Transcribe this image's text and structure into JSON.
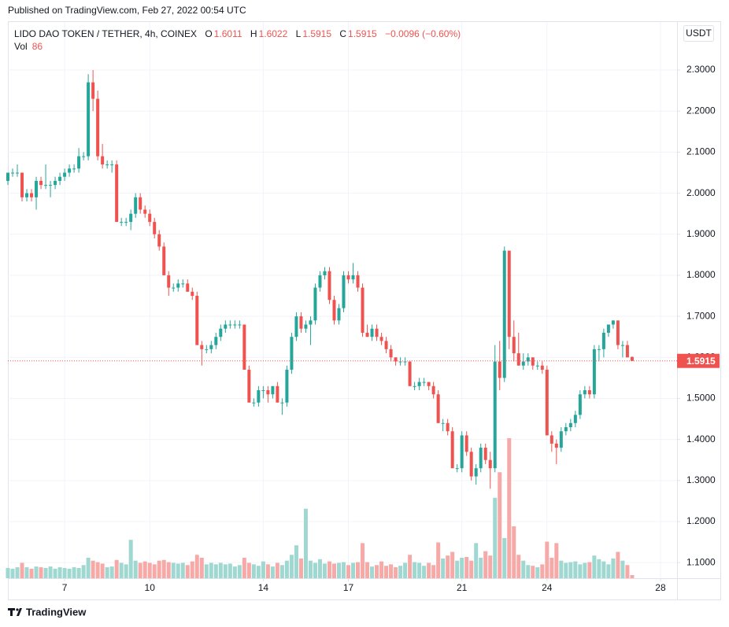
{
  "published": "Published on TradingView.com, Feb 27, 2022 00:54 UTC",
  "footer": "TradingView",
  "chart_data": {
    "type": "candlestick",
    "title": "LIDO DAO TOKEN / TETHER, 4h, COINEX",
    "legend": [
      {
        "label": "O",
        "value": 1.6011
      },
      {
        "label": "H",
        "value": 1.6022
      },
      {
        "label": "L",
        "value": 1.5915
      },
      {
        "label": "C",
        "value": 1.5915
      }
    ],
    "change": "−0.0096 (−0.60%)",
    "volume_label": "Vol",
    "volume_value": 86,
    "currency": "USDT",
    "up_color": "#26a69a",
    "down_color": "#ef5350",
    "volume_up_color": "#9fd7d1",
    "volume_down_color": "#f6a9a7",
    "candles": [
      [
        2.03,
        2.05,
        2.02,
        2.05
      ],
      [
        2.05,
        2.06,
        2.04,
        2.05
      ],
      [
        2.05,
        2.07,
        2.04,
        2.05
      ],
      [
        2.05,
        2.05,
        1.98,
        1.99
      ],
      [
        1.99,
        2.01,
        1.98,
        2.0
      ],
      [
        2.0,
        2.01,
        1.98,
        1.99
      ],
      [
        1.99,
        2.04,
        1.96,
        2.03
      ],
      [
        2.03,
        2.04,
        2.01,
        2.02
      ],
      [
        2.02,
        2.07,
        2.01,
        2.02
      ],
      [
        2.02,
        2.03,
        1.99,
        2.02
      ],
      [
        2.02,
        2.04,
        2.01,
        2.03
      ],
      [
        2.03,
        2.05,
        2.02,
        2.04
      ],
      [
        2.04,
        2.06,
        2.03,
        2.05
      ],
      [
        2.05,
        2.07,
        2.04,
        2.06
      ],
      [
        2.06,
        2.07,
        2.05,
        2.06
      ],
      [
        2.06,
        2.11,
        2.05,
        2.09
      ],
      [
        2.09,
        2.1,
        2.08,
        2.09
      ],
      [
        2.09,
        2.29,
        2.08,
        2.27
      ],
      [
        2.27,
        2.3,
        2.2,
        2.23
      ],
      [
        2.23,
        2.25,
        2.08,
        2.09
      ],
      [
        2.09,
        2.12,
        2.06,
        2.07
      ],
      [
        2.07,
        2.08,
        2.06,
        2.07
      ],
      [
        2.07,
        2.08,
        2.05,
        2.07
      ],
      [
        2.07,
        2.08,
        1.93,
        1.93
      ],
      [
        1.93,
        1.94,
        1.92,
        1.93
      ],
      [
        1.93,
        1.94,
        1.92,
        1.93
      ],
      [
        1.93,
        1.96,
        1.91,
        1.95
      ],
      [
        1.95,
        2.0,
        1.94,
        1.99
      ],
      [
        1.99,
        2.0,
        1.95,
        1.96
      ],
      [
        1.96,
        1.97,
        1.94,
        1.95
      ],
      [
        1.95,
        1.96,
        1.92,
        1.93
      ],
      [
        1.93,
        1.94,
        1.89,
        1.9
      ],
      [
        1.9,
        1.91,
        1.86,
        1.87
      ],
      [
        1.87,
        1.88,
        1.8,
        1.8
      ],
      [
        1.8,
        1.81,
        1.75,
        1.77
      ],
      [
        1.77,
        1.78,
        1.76,
        1.77
      ],
      [
        1.77,
        1.79,
        1.76,
        1.78
      ],
      [
        1.78,
        1.79,
        1.77,
        1.78
      ],
      [
        1.78,
        1.79,
        1.76,
        1.76
      ],
      [
        1.76,
        1.77,
        1.74,
        1.75
      ],
      [
        1.75,
        1.76,
        1.63,
        1.63
      ],
      [
        1.63,
        1.64,
        1.58,
        1.62
      ],
      [
        1.62,
        1.63,
        1.61,
        1.62
      ],
      [
        1.62,
        1.64,
        1.61,
        1.63
      ],
      [
        1.63,
        1.66,
        1.62,
        1.65
      ],
      [
        1.65,
        1.68,
        1.64,
        1.67
      ],
      [
        1.67,
        1.69,
        1.66,
        1.68
      ],
      [
        1.68,
        1.69,
        1.67,
        1.68
      ],
      [
        1.68,
        1.69,
        1.67,
        1.68
      ],
      [
        1.68,
        1.69,
        1.67,
        1.68
      ],
      [
        1.68,
        1.68,
        1.57,
        1.57
      ],
      [
        1.57,
        1.58,
        1.49,
        1.49
      ],
      [
        1.49,
        1.5,
        1.48,
        1.49
      ],
      [
        1.49,
        1.53,
        1.48,
        1.52
      ],
      [
        1.52,
        1.53,
        1.5,
        1.52
      ],
      [
        1.52,
        1.53,
        1.49,
        1.51
      ],
      [
        1.51,
        1.53,
        1.5,
        1.53
      ],
      [
        1.53,
        1.54,
        1.49,
        1.49
      ],
      [
        1.49,
        1.5,
        1.46,
        1.49
      ],
      [
        1.49,
        1.58,
        1.48,
        1.57
      ],
      [
        1.57,
        1.66,
        1.56,
        1.65
      ],
      [
        1.65,
        1.71,
        1.64,
        1.7
      ],
      [
        1.7,
        1.71,
        1.66,
        1.67
      ],
      [
        1.67,
        1.69,
        1.66,
        1.68
      ],
      [
        1.68,
        1.7,
        1.63,
        1.69
      ],
      [
        1.69,
        1.78,
        1.68,
        1.77
      ],
      [
        1.77,
        1.81,
        1.76,
        1.8
      ],
      [
        1.8,
        1.82,
        1.79,
        1.81
      ],
      [
        1.81,
        1.82,
        1.73,
        1.74
      ],
      [
        1.74,
        1.75,
        1.68,
        1.69
      ],
      [
        1.69,
        1.73,
        1.68,
        1.72
      ],
      [
        1.72,
        1.81,
        1.71,
        1.8
      ],
      [
        1.8,
        1.81,
        1.78,
        1.79
      ],
      [
        1.79,
        1.83,
        1.78,
        1.8
      ],
      [
        1.8,
        1.81,
        1.76,
        1.77
      ],
      [
        1.77,
        1.78,
        1.65,
        1.66
      ],
      [
        1.66,
        1.68,
        1.65,
        1.65
      ],
      [
        1.65,
        1.68,
        1.64,
        1.67
      ],
      [
        1.67,
        1.68,
        1.64,
        1.65
      ],
      [
        1.65,
        1.66,
        1.63,
        1.64
      ],
      [
        1.64,
        1.65,
        1.61,
        1.62
      ],
      [
        1.62,
        1.63,
        1.59,
        1.6
      ],
      [
        1.6,
        1.6,
        1.58,
        1.59
      ],
      [
        1.59,
        1.6,
        1.58,
        1.59
      ],
      [
        1.59,
        1.6,
        1.58,
        1.59
      ],
      [
        1.59,
        1.59,
        1.53,
        1.53
      ],
      [
        1.53,
        1.54,
        1.52,
        1.53
      ],
      [
        1.53,
        1.55,
        1.52,
        1.54
      ],
      [
        1.54,
        1.55,
        1.53,
        1.54
      ],
      [
        1.54,
        1.54,
        1.52,
        1.53
      ],
      [
        1.53,
        1.54,
        1.5,
        1.51
      ],
      [
        1.51,
        1.52,
        1.44,
        1.44
      ],
      [
        1.44,
        1.45,
        1.42,
        1.44
      ],
      [
        1.44,
        1.45,
        1.41,
        1.42
      ],
      [
        1.42,
        1.43,
        1.33,
        1.33
      ],
      [
        1.33,
        1.34,
        1.32,
        1.33
      ],
      [
        1.33,
        1.42,
        1.32,
        1.41
      ],
      [
        1.41,
        1.42,
        1.36,
        1.37
      ],
      [
        1.37,
        1.38,
        1.3,
        1.31
      ],
      [
        1.31,
        1.34,
        1.29,
        1.33
      ],
      [
        1.33,
        1.39,
        1.32,
        1.38
      ],
      [
        1.38,
        1.39,
        1.34,
        1.35
      ],
      [
        1.35,
        1.37,
        1.28,
        1.33
      ],
      [
        1.33,
        1.63,
        1.32,
        1.59
      ],
      [
        1.59,
        1.64,
        1.52,
        1.55
      ],
      [
        1.55,
        1.87,
        1.54,
        1.86
      ],
      [
        1.86,
        1.86,
        1.62,
        1.65
      ],
      [
        1.65,
        1.69,
        1.59,
        1.61
      ],
      [
        1.61,
        1.66,
        1.58,
        1.58
      ],
      [
        1.58,
        1.61,
        1.57,
        1.59
      ],
      [
        1.59,
        1.61,
        1.58,
        1.6
      ],
      [
        1.6,
        1.6,
        1.57,
        1.58
      ],
      [
        1.58,
        1.59,
        1.57,
        1.58
      ],
      [
        1.58,
        1.59,
        1.56,
        1.57
      ],
      [
        1.57,
        1.58,
        1.41,
        1.41
      ],
      [
        1.41,
        1.42,
        1.37,
        1.39
      ],
      [
        1.39,
        1.4,
        1.34,
        1.38
      ],
      [
        1.38,
        1.43,
        1.37,
        1.42
      ],
      [
        1.42,
        1.44,
        1.41,
        1.43
      ],
      [
        1.43,
        1.45,
        1.42,
        1.44
      ],
      [
        1.44,
        1.47,
        1.43,
        1.46
      ],
      [
        1.46,
        1.52,
        1.45,
        1.51
      ],
      [
        1.51,
        1.53,
        1.5,
        1.52
      ],
      [
        1.52,
        1.53,
        1.5,
        1.51
      ],
      [
        1.51,
        1.63,
        1.5,
        1.62
      ],
      [
        1.62,
        1.63,
        1.59,
        1.62
      ],
      [
        1.62,
        1.67,
        1.6,
        1.66
      ],
      [
        1.66,
        1.68,
        1.65,
        1.68
      ],
      [
        1.68,
        1.69,
        1.67,
        1.69
      ],
      [
        1.69,
        1.69,
        1.62,
        1.63
      ],
      [
        1.63,
        1.64,
        1.6,
        1.63
      ],
      [
        1.63,
        1.64,
        1.6,
        1.6
      ],
      [
        1.6011,
        1.6022,
        1.5915,
        1.5915
      ]
    ],
    "volumes": [
      280,
      260,
      300,
      420,
      300,
      260,
      320,
      300,
      280,
      320,
      260,
      300,
      280,
      260,
      300,
      280,
      360,
      560,
      480,
      440,
      400,
      300,
      320,
      500,
      420,
      380,
      1050,
      480,
      420,
      460,
      420,
      380,
      480,
      500,
      440,
      420,
      400,
      420,
      360,
      460,
      640,
      560,
      380,
      420,
      380,
      420,
      380,
      400,
      320,
      360,
      560,
      420,
      380,
      340,
      460,
      380,
      320,
      420,
      360,
      480,
      640,
      900,
      540,
      1900,
      480,
      420,
      520,
      400,
      460,
      400,
      420,
      440,
      360,
      420,
      440,
      960,
      440,
      320,
      360,
      460,
      340,
      380,
      300,
      340,
      420,
      640,
      440,
      420,
      340,
      420,
      360,
      980,
      540,
      620,
      720,
      480,
      560,
      580,
      480,
      960,
      560,
      740,
      620,
      2200,
      2900,
      1100,
      3830,
      1420,
      640,
      480,
      360,
      340,
      300,
      380,
      1000,
      560,
      960,
      480,
      420,
      440,
      460,
      380,
      420,
      440,
      620,
      520,
      460,
      380,
      540,
      720,
      480,
      360,
      86
    ],
    "xlim": [
      0,
      141.5
    ],
    "xticks": [
      {
        "value": 12,
        "label": "7"
      },
      {
        "value": 30,
        "label": "10"
      },
      {
        "value": 54,
        "label": "14"
      },
      {
        "value": 72,
        "label": "17"
      },
      {
        "value": 96,
        "label": "21"
      },
      {
        "value": 114,
        "label": "24"
      },
      {
        "value": 138,
        "label": "28"
      }
    ],
    "ylim": [
      1.062,
      2.417
    ],
    "yticks": [
      {
        "value": 1.1,
        "label": "1.1000"
      },
      {
        "value": 1.2,
        "label": "1.2000"
      },
      {
        "value": 1.3,
        "label": "1.3000"
      },
      {
        "value": 1.4,
        "label": "1.4000"
      },
      {
        "value": 1.5,
        "label": "1.5000"
      },
      {
        "value": 1.6,
        "label": "1.6000"
      },
      {
        "value": 1.7,
        "label": "1.7000"
      },
      {
        "value": 1.8,
        "label": "1.8000"
      },
      {
        "value": 1.9,
        "label": "1.9000"
      },
      {
        "value": 2.0,
        "label": "2.0000"
      },
      {
        "value": 2.1,
        "label": "2.1000"
      },
      {
        "value": 2.2,
        "label": "2.2000"
      },
      {
        "value": 2.3,
        "label": "2.3000"
      }
    ],
    "grid": true,
    "last_price_line": true
  }
}
